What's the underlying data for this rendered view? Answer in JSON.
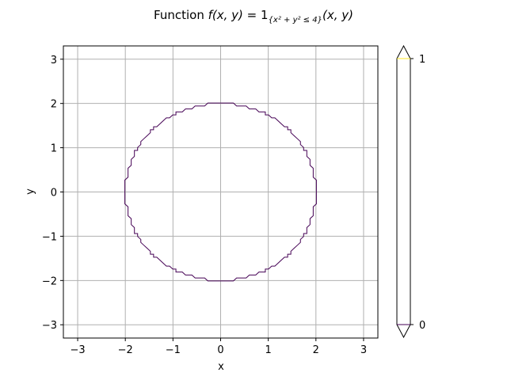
{
  "chart_data": {
    "type": "contour",
    "title": {
      "prefix": "Function ",
      "lhs": "f(x, y)",
      "eq": " = 1",
      "subscript": "{x² + y² ≤ 4}",
      "args": "(x, y)"
    },
    "xlabel": "x",
    "ylabel": "y",
    "xlim": [
      -3.3,
      3.3
    ],
    "ylim": [
      -3.3,
      3.3
    ],
    "xticks": [
      -3,
      -2,
      -1,
      0,
      1,
      2,
      3
    ],
    "yticks": [
      -3,
      -2,
      -1,
      0,
      1,
      2,
      3
    ],
    "tick_labels": [
      "−3",
      "−2",
      "−1",
      "0",
      "1",
      "2",
      "3"
    ],
    "grid": true,
    "contour": {
      "level": 0,
      "shape": "circle",
      "center": [
        0,
        0
      ],
      "radius": 2,
      "grid_step": 0.067,
      "color": "#440154"
    },
    "colorbar": {
      "ticks": [
        0,
        1
      ],
      "tick_labels": [
        "0",
        "1"
      ],
      "level_colors": [
        "#440154",
        "#fde725"
      ],
      "extend": "both"
    }
  }
}
